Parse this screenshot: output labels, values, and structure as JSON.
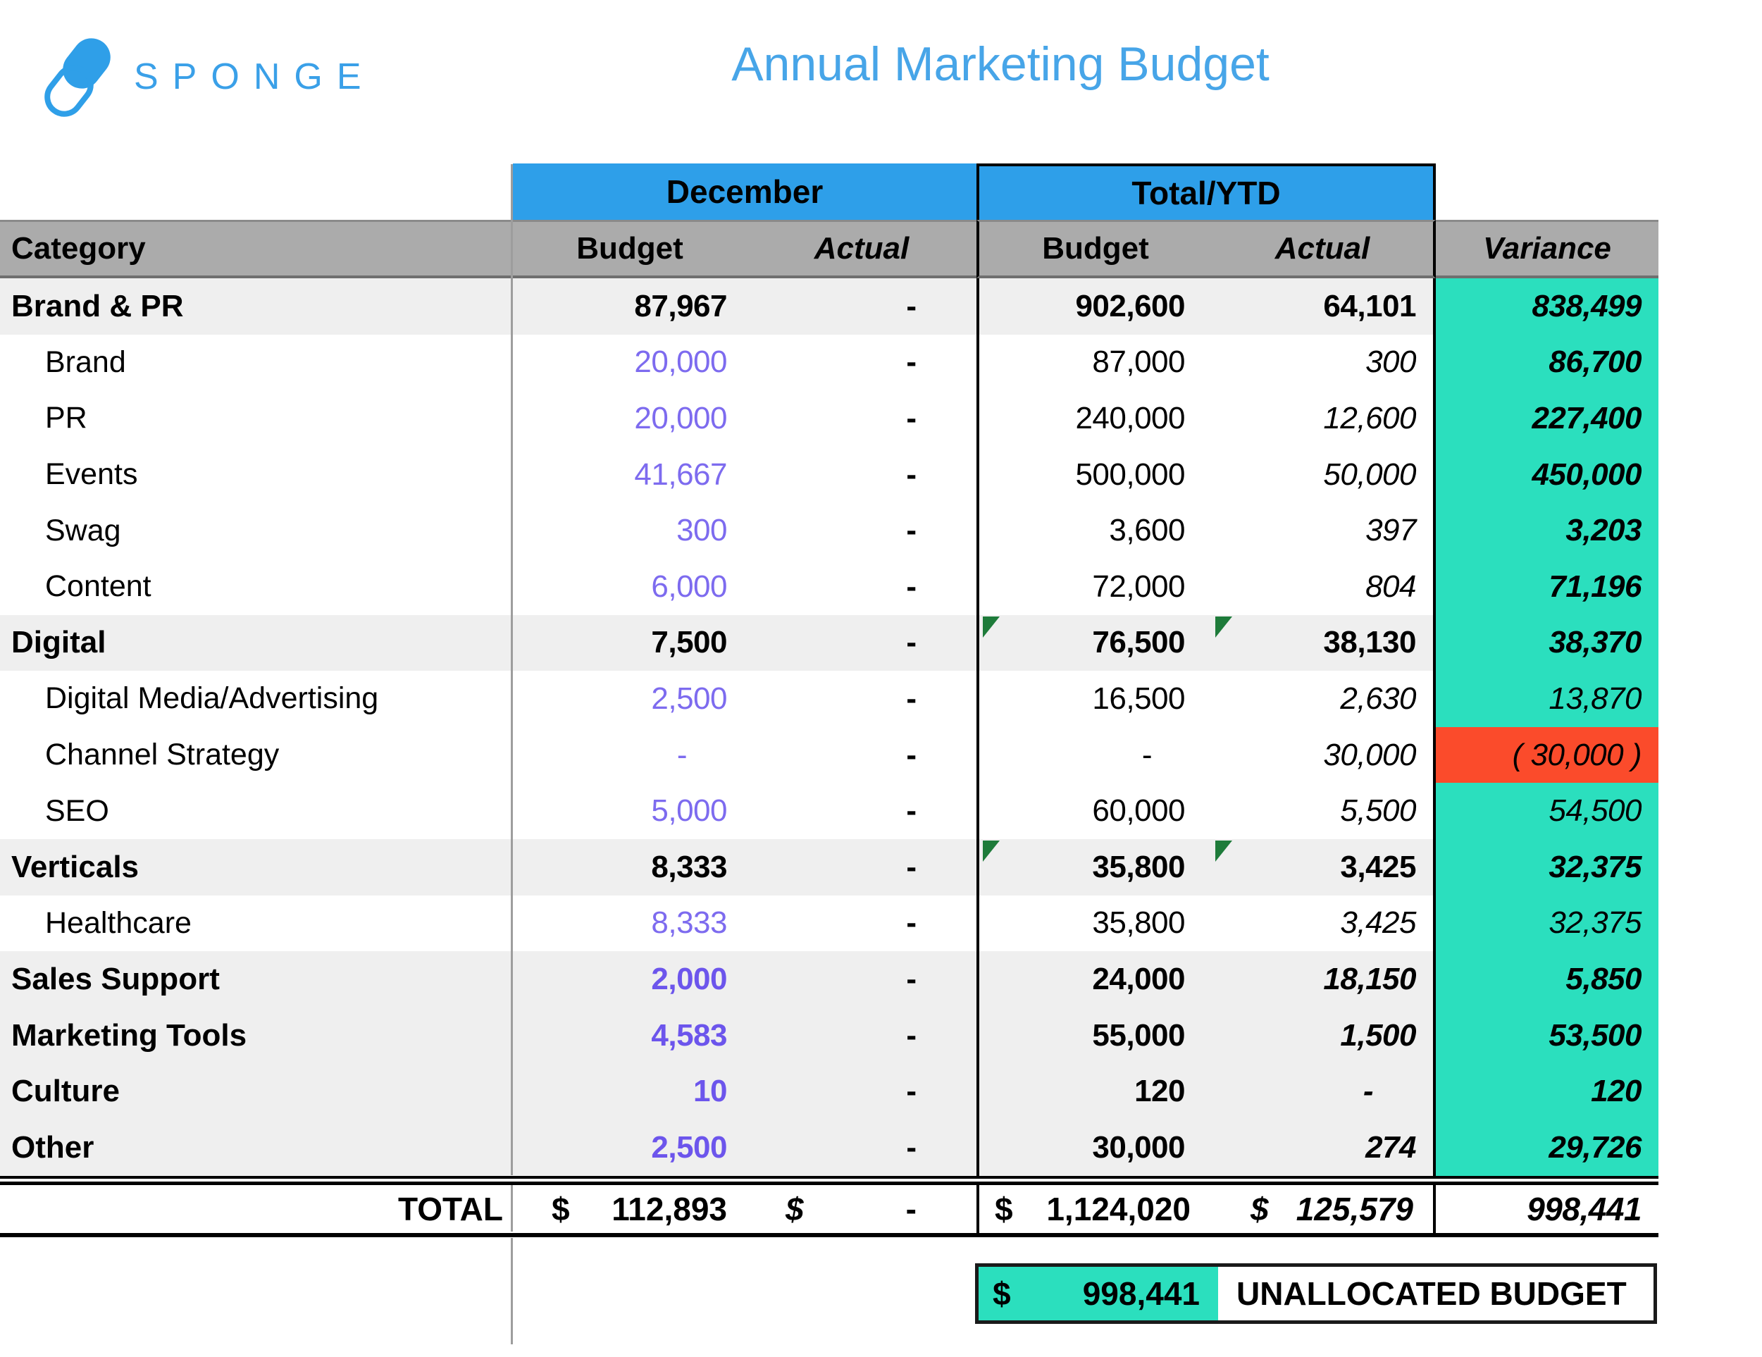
{
  "logo": {
    "text": "SPONGE"
  },
  "title": "Annual Marketing Budget",
  "colors": {
    "banner_blue": "#2e9fe9",
    "title_blue": "#47a5e8",
    "logo_blue": "#3aa0e8",
    "header_gray": "#ababab",
    "row_stripe_gray": "#efefef",
    "variance_teal": "#2bdfbe",
    "negative_red": "#fb4b2b",
    "budget_purple": "#7d6bef",
    "budget_purple_bold": "#6c55ec",
    "comment_marker_green": "#1e7b3a"
  },
  "table": {
    "banners": {
      "december": "December",
      "ytd": "Total/YTD"
    },
    "headers": {
      "category": "Category",
      "dec_budget": "Budget",
      "dec_actual": "Actual",
      "ytd_budget": "Budget",
      "ytd_actual": "Actual",
      "variance": "Variance"
    },
    "rows": [
      {
        "category": "Brand & PR",
        "level": "main",
        "dec_style": "black-bold",
        "dec_budget": "87,967",
        "dec_actual": "-",
        "ytd_budget": "902,600",
        "ytd_actual": "64,101",
        "ytd_actual_bold": true,
        "ytd_actual_italic": false,
        "variance": "838,499",
        "variance_bold": true,
        "variance_bg": "teal",
        "markers": false
      },
      {
        "category": "Brand",
        "level": "sub",
        "dec_style": "purple",
        "dec_budget": "20,000",
        "dec_actual": "-",
        "ytd_budget": "87,000",
        "ytd_actual": "300",
        "ytd_actual_bold": false,
        "ytd_actual_italic": true,
        "variance": "86,700",
        "variance_bold": true,
        "variance_bg": "teal",
        "markers": false
      },
      {
        "category": "PR",
        "level": "sub",
        "dec_style": "purple",
        "dec_budget": "20,000",
        "dec_actual": "-",
        "ytd_budget": "240,000",
        "ytd_actual": "12,600",
        "ytd_actual_bold": false,
        "ytd_actual_italic": true,
        "variance": "227,400",
        "variance_bold": true,
        "variance_bg": "teal",
        "markers": false
      },
      {
        "category": "Events",
        "level": "sub",
        "dec_style": "purple",
        "dec_budget": "41,667",
        "dec_actual": "-",
        "ytd_budget": "500,000",
        "ytd_actual": "50,000",
        "ytd_actual_bold": false,
        "ytd_actual_italic": true,
        "variance": "450,000",
        "variance_bold": true,
        "variance_bg": "teal",
        "markers": false
      },
      {
        "category": "Swag",
        "level": "sub",
        "dec_style": "purple",
        "dec_budget": "300",
        "dec_actual": "-",
        "ytd_budget": "3,600",
        "ytd_actual": "397",
        "ytd_actual_bold": false,
        "ytd_actual_italic": true,
        "variance": "3,203",
        "variance_bold": true,
        "variance_bg": "teal",
        "markers": false
      },
      {
        "category": "Content",
        "level": "sub",
        "dec_style": "purple",
        "dec_budget": "6,000",
        "dec_actual": "-",
        "ytd_budget": "72,000",
        "ytd_actual": "804",
        "ytd_actual_bold": false,
        "ytd_actual_italic": true,
        "variance": "71,196",
        "variance_bold": true,
        "variance_bg": "teal",
        "markers": false
      },
      {
        "category": "Digital",
        "level": "main",
        "dec_style": "black-bold",
        "dec_budget": "7,500",
        "dec_actual": "-",
        "ytd_budget": "76,500",
        "ytd_actual": "38,130",
        "ytd_actual_bold": true,
        "ytd_actual_italic": false,
        "variance": "38,370",
        "variance_bold": true,
        "variance_bg": "teal",
        "markers": true
      },
      {
        "category": "Digital Media/Advertising",
        "level": "sub",
        "dec_style": "purple",
        "dec_budget": "2,500",
        "dec_actual": "-",
        "ytd_budget": "16,500",
        "ytd_actual": "2,630",
        "ytd_actual_bold": false,
        "ytd_actual_italic": true,
        "variance": "13,870",
        "variance_bold": false,
        "variance_bg": "teal",
        "markers": false
      },
      {
        "category": "Channel Strategy",
        "level": "sub",
        "dec_style": "purple",
        "dec_budget": "-",
        "dec_actual": "-",
        "ytd_budget": "-",
        "ytd_actual": "30,000",
        "ytd_actual_bold": false,
        "ytd_actual_italic": true,
        "variance": "( 30,000 )",
        "variance_bold": false,
        "variance_bg": "red",
        "markers": false
      },
      {
        "category": "SEO",
        "level": "sub",
        "dec_style": "purple",
        "dec_budget": "5,000",
        "dec_actual": "-",
        "ytd_budget": "60,000",
        "ytd_actual": "5,500",
        "ytd_actual_bold": false,
        "ytd_actual_italic": true,
        "variance": "54,500",
        "variance_bold": false,
        "variance_bg": "teal",
        "markers": false
      },
      {
        "category": "Verticals",
        "level": "main",
        "dec_style": "black-bold",
        "dec_budget": "8,333",
        "dec_actual": "-",
        "ytd_budget": "35,800",
        "ytd_actual": "3,425",
        "ytd_actual_bold": true,
        "ytd_actual_italic": false,
        "variance": "32,375",
        "variance_bold": true,
        "variance_bg": "teal",
        "markers": true
      },
      {
        "category": "Healthcare",
        "level": "sub",
        "dec_style": "purple",
        "dec_budget": "8,333",
        "dec_actual": "-",
        "ytd_budget": "35,800",
        "ytd_actual": "3,425",
        "ytd_actual_bold": false,
        "ytd_actual_italic": true,
        "variance": "32,375",
        "variance_bold": false,
        "variance_bg": "teal",
        "markers": false
      },
      {
        "category": "Sales Support",
        "level": "main",
        "dec_style": "purple-bold",
        "dec_budget": "2,000",
        "dec_actual": "-",
        "ytd_budget": "24,000",
        "ytd_actual": "18,150",
        "ytd_actual_bold": true,
        "ytd_actual_italic": true,
        "variance": "5,850",
        "variance_bold": true,
        "variance_bg": "teal",
        "markers": false
      },
      {
        "category": "Marketing Tools",
        "level": "main",
        "dec_style": "purple-bold",
        "dec_budget": "4,583",
        "dec_actual": "-",
        "ytd_budget": "55,000",
        "ytd_actual": "1,500",
        "ytd_actual_bold": true,
        "ytd_actual_italic": true,
        "variance": "53,500",
        "variance_bold": true,
        "variance_bg": "teal",
        "markers": false
      },
      {
        "category": "Culture",
        "level": "main",
        "dec_style": "purple-bold",
        "dec_budget": "10",
        "dec_actual": "-",
        "ytd_budget": "120",
        "ytd_actual": "-",
        "ytd_actual_bold": true,
        "ytd_actual_italic": true,
        "variance": "120",
        "variance_bold": true,
        "variance_bg": "teal",
        "markers": false
      },
      {
        "category": "Other",
        "level": "main",
        "dec_style": "purple-bold",
        "dec_budget": "2,500",
        "dec_actual": "-",
        "ytd_budget": "30,000",
        "ytd_actual": "274",
        "ytd_actual_bold": true,
        "ytd_actual_italic": true,
        "variance": "29,726",
        "variance_bold": true,
        "variance_bg": "teal",
        "markers": false
      }
    ],
    "total": {
      "label": "TOTAL",
      "currency": "$",
      "dec_budget": "112,893",
      "dec_actual": "-",
      "ytd_budget": "1,124,020",
      "ytd_actual": "125,579",
      "variance": "998,441"
    }
  },
  "footer": {
    "currency": "$",
    "amount": "998,441",
    "label": "UNALLOCATED BUDGET"
  }
}
